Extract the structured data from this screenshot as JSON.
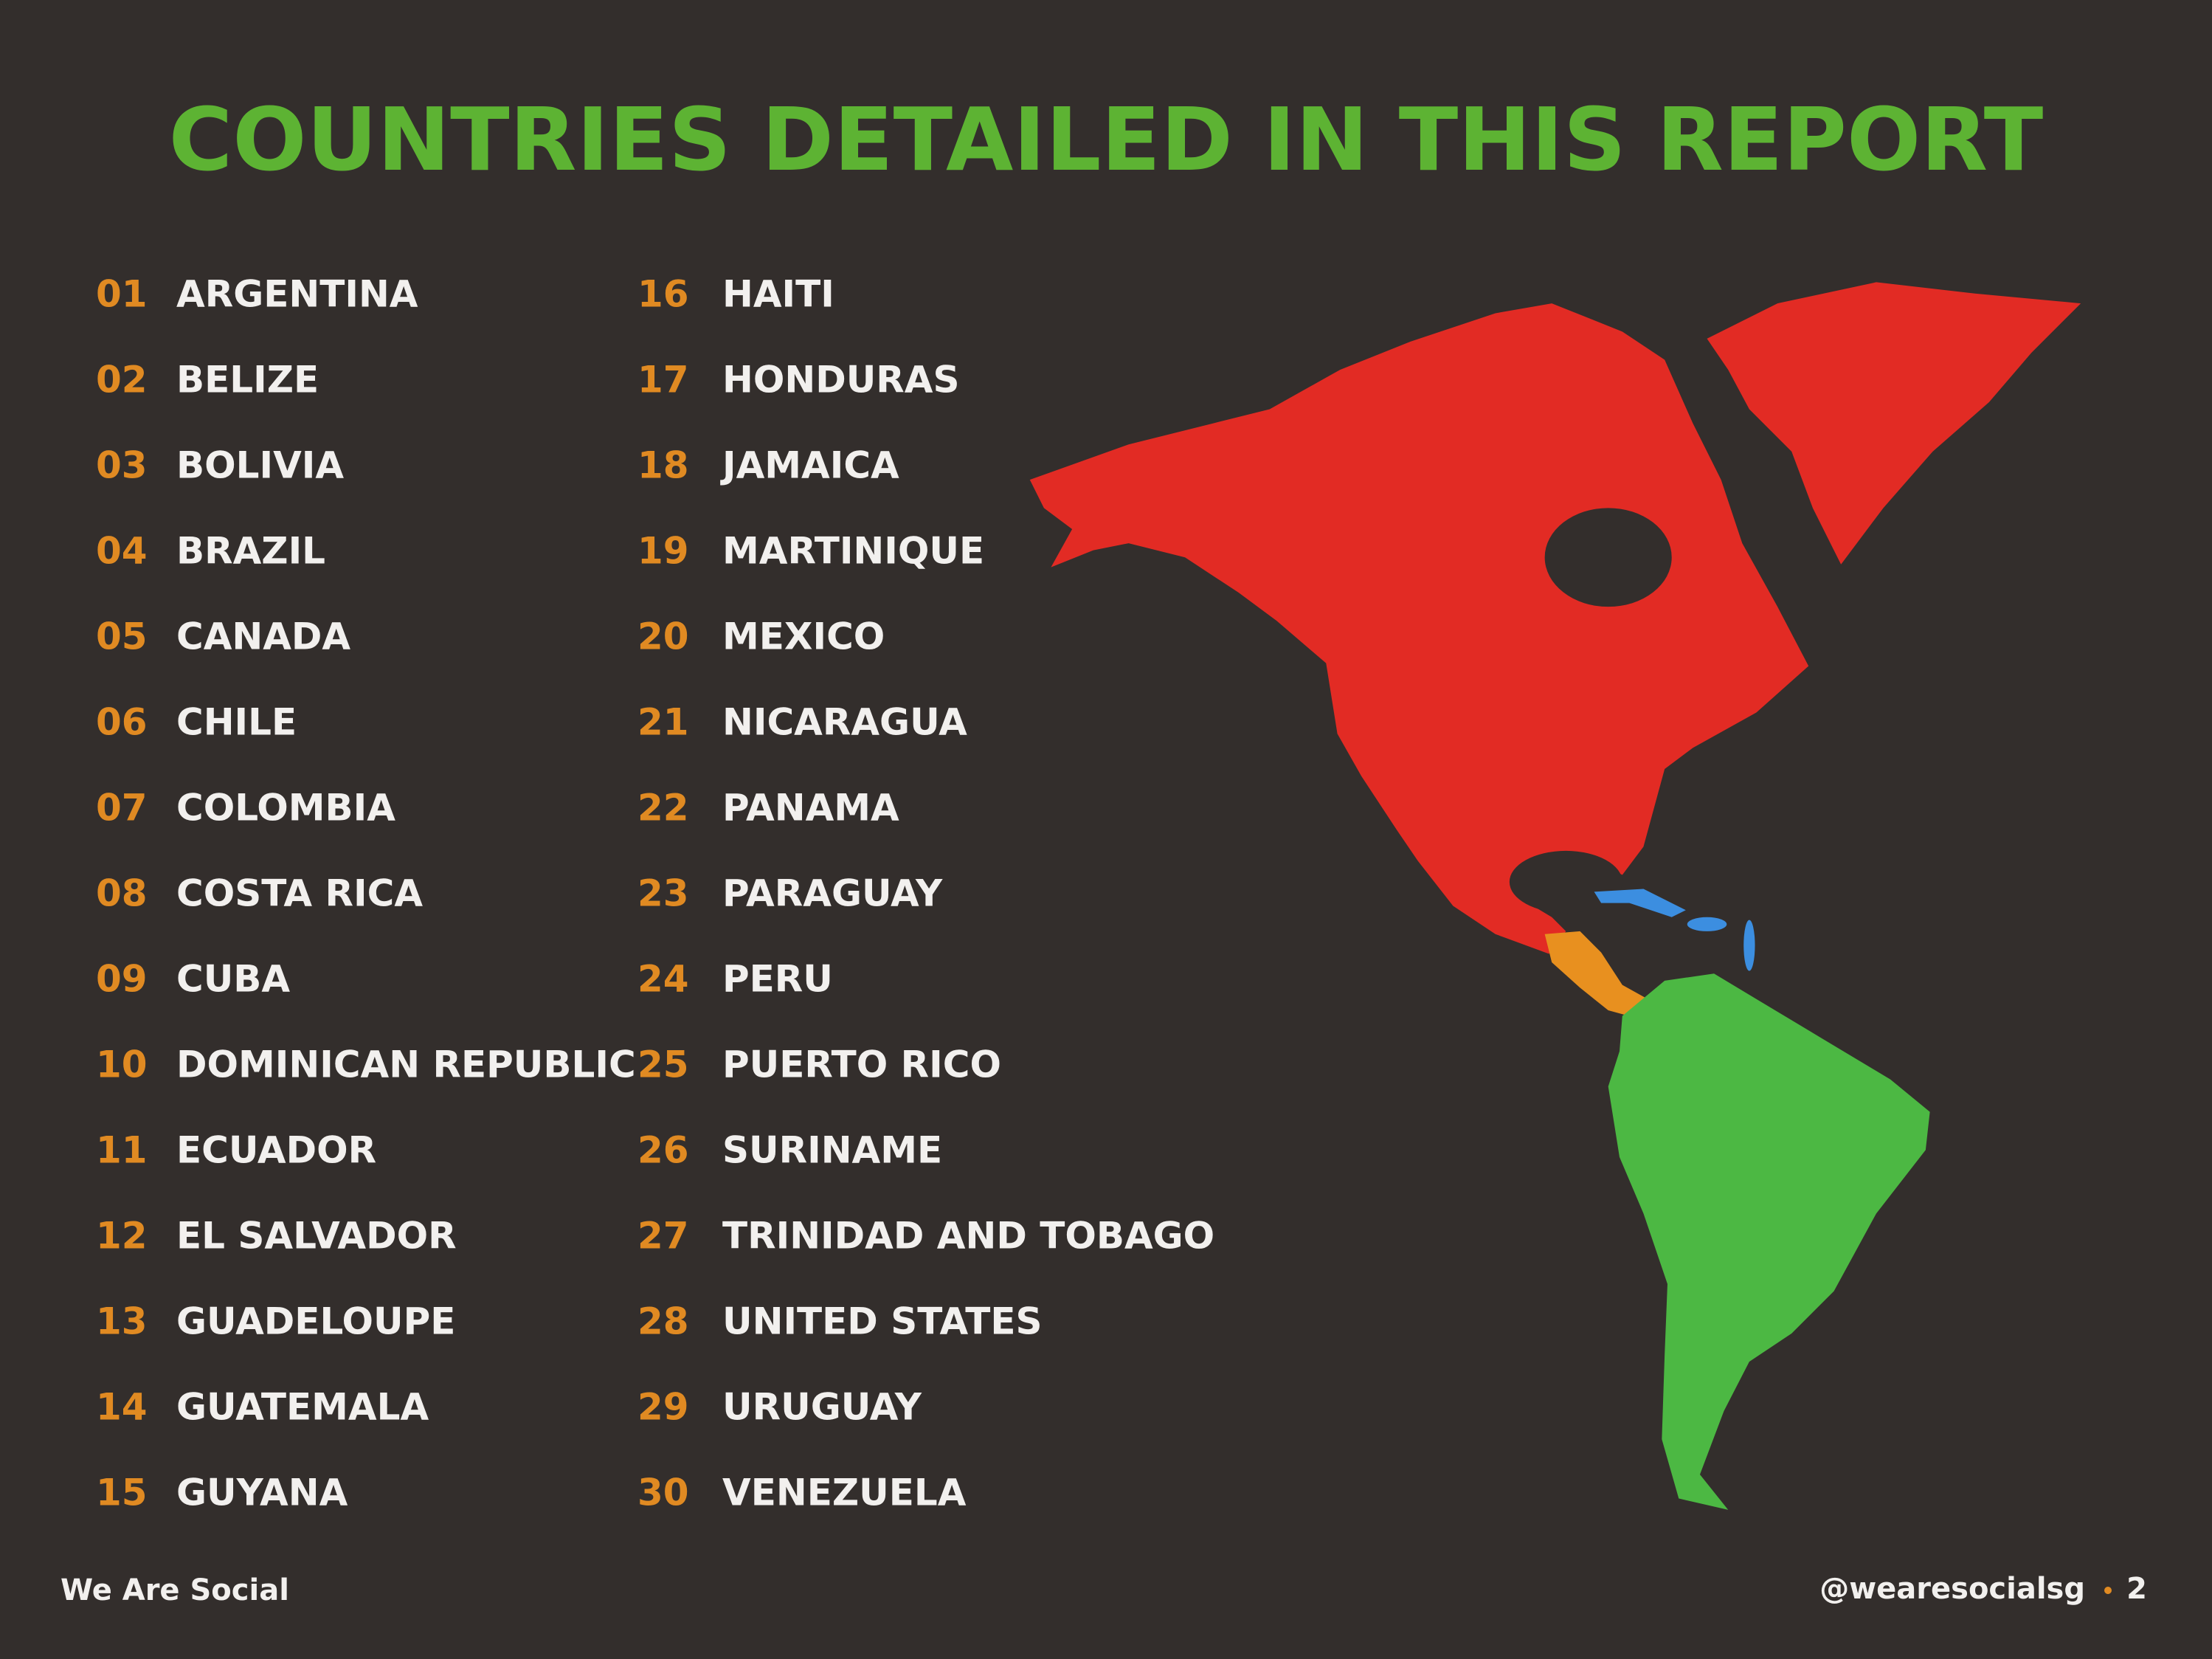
{
  "title": "COUNTRIES DETAILED IN THIS REPORT",
  "countries": [
    {
      "num": "01",
      "name": "ARGENTINA"
    },
    {
      "num": "02",
      "name": "BELIZE"
    },
    {
      "num": "03",
      "name": "BOLIVIA"
    },
    {
      "num": "04",
      "name": "BRAZIL"
    },
    {
      "num": "05",
      "name": "CANADA"
    },
    {
      "num": "06",
      "name": "CHILE"
    },
    {
      "num": "07",
      "name": "COLOMBIA"
    },
    {
      "num": "08",
      "name": "COSTA RICA"
    },
    {
      "num": "09",
      "name": "CUBA"
    },
    {
      "num": "10",
      "name": "DOMINICAN REPUBLIC"
    },
    {
      "num": "11",
      "name": "ECUADOR"
    },
    {
      "num": "12",
      "name": "EL SALVADOR"
    },
    {
      "num": "13",
      "name": "GUADELOUPE"
    },
    {
      "num": "14",
      "name": "GUATEMALA"
    },
    {
      "num": "15",
      "name": "GUYANA"
    },
    {
      "num": "16",
      "name": "HAITI"
    },
    {
      "num": "17",
      "name": "HONDURAS"
    },
    {
      "num": "18",
      "name": "JAMAICA"
    },
    {
      "num": "19",
      "name": "MARTINIQUE"
    },
    {
      "num": "20",
      "name": "MEXICO"
    },
    {
      "num": "21",
      "name": "NICARAGUA"
    },
    {
      "num": "22",
      "name": "PANAMA"
    },
    {
      "num": "23",
      "name": "PARAGUAY"
    },
    {
      "num": "24",
      "name": "PERU"
    },
    {
      "num": "25",
      "name": "PUERTO RICO"
    },
    {
      "num": "26",
      "name": "SURINAME"
    },
    {
      "num": "27",
      "name": "TRINIDAD AND TOBAGO"
    },
    {
      "num": "28",
      "name": "UNITED STATES"
    },
    {
      "num": "29",
      "name": "URUGUAY"
    },
    {
      "num": "30",
      "name": "VENEZUELA"
    }
  ],
  "footer": {
    "brand": "We Are Social",
    "handle": "@wearesocialsg",
    "page": "2"
  }
}
